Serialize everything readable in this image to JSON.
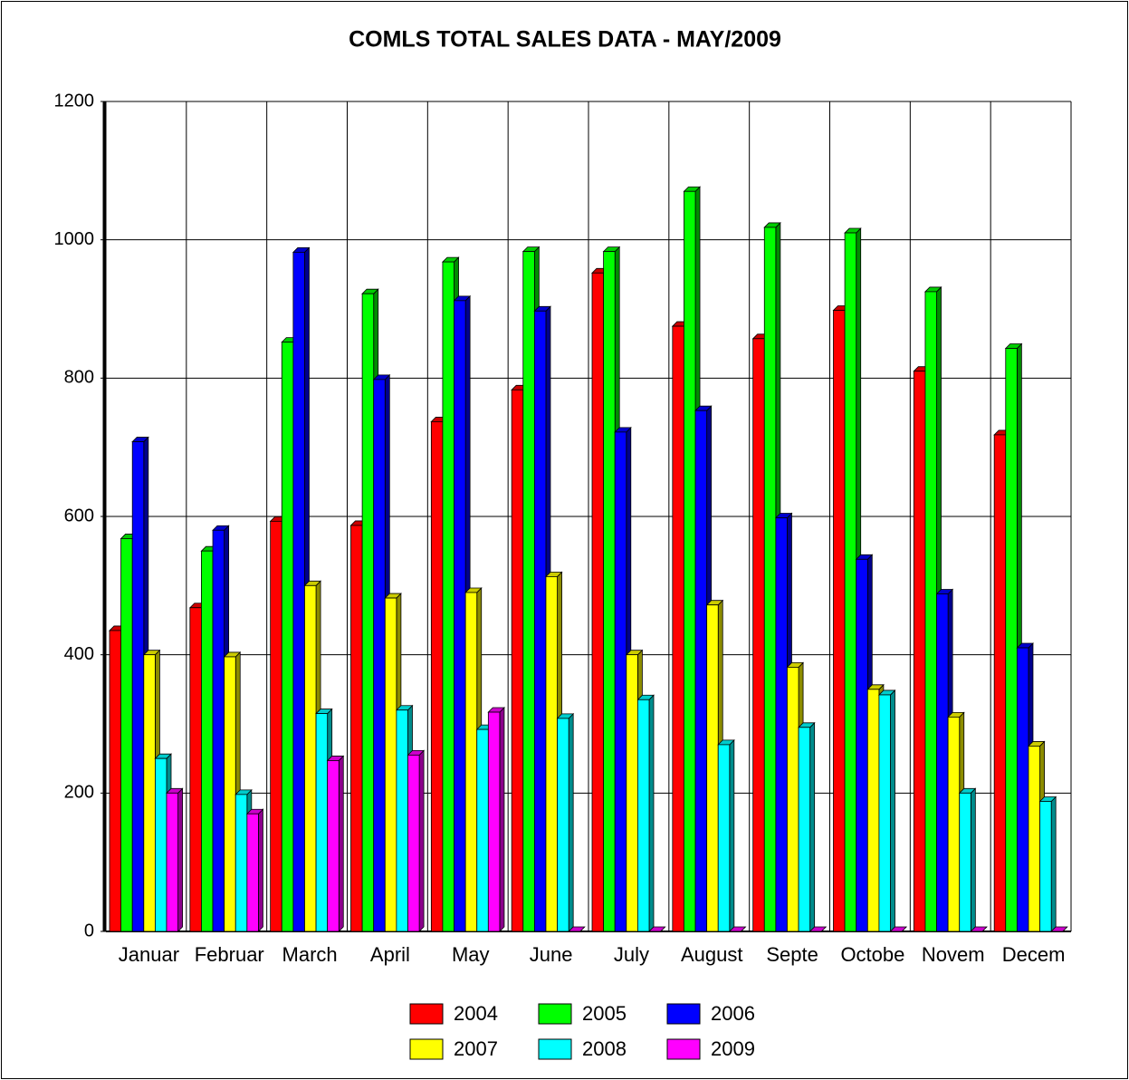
{
  "chart_data": {
    "type": "bar",
    "title": "COMLS TOTAL SALES DATA  - MAY/2009",
    "categories": [
      "Januar",
      "Februar",
      "March",
      "April",
      "May",
      "June",
      "July",
      "August",
      "Septe",
      "Octobe",
      "Novem",
      "Decem"
    ],
    "series": [
      {
        "name": "2004",
        "color": "#ff0000",
        "values": [
          435,
          468,
          593,
          587,
          737,
          783,
          952,
          875,
          857,
          898,
          810,
          718
        ]
      },
      {
        "name": "2005",
        "color": "#00ff00",
        "values": [
          568,
          550,
          852,
          922,
          968,
          983,
          983,
          1070,
          1018,
          1010,
          925,
          843
        ]
      },
      {
        "name": "2006",
        "color": "#0000ff",
        "values": [
          708,
          580,
          982,
          798,
          912,
          897,
          722,
          753,
          598,
          538,
          488,
          410
        ]
      },
      {
        "name": "2007",
        "color": "#ffff00",
        "values": [
          400,
          397,
          500,
          482,
          490,
          513,
          400,
          472,
          382,
          350,
          310,
          268
        ]
      },
      {
        "name": "2008",
        "color": "#00ffff",
        "values": [
          250,
          198,
          315,
          320,
          292,
          308,
          335,
          270,
          295,
          342,
          200,
          188
        ]
      },
      {
        "name": "2009",
        "color": "#ff00ff",
        "values": [
          200,
          170,
          247,
          255,
          317,
          0,
          0,
          0,
          0,
          0,
          0,
          0
        ]
      }
    ],
    "ylim": [
      0,
      1200
    ],
    "yticks": [
      0,
      200,
      400,
      600,
      800,
      1000,
      1200
    ],
    "grid": true,
    "legend": "bottom"
  }
}
